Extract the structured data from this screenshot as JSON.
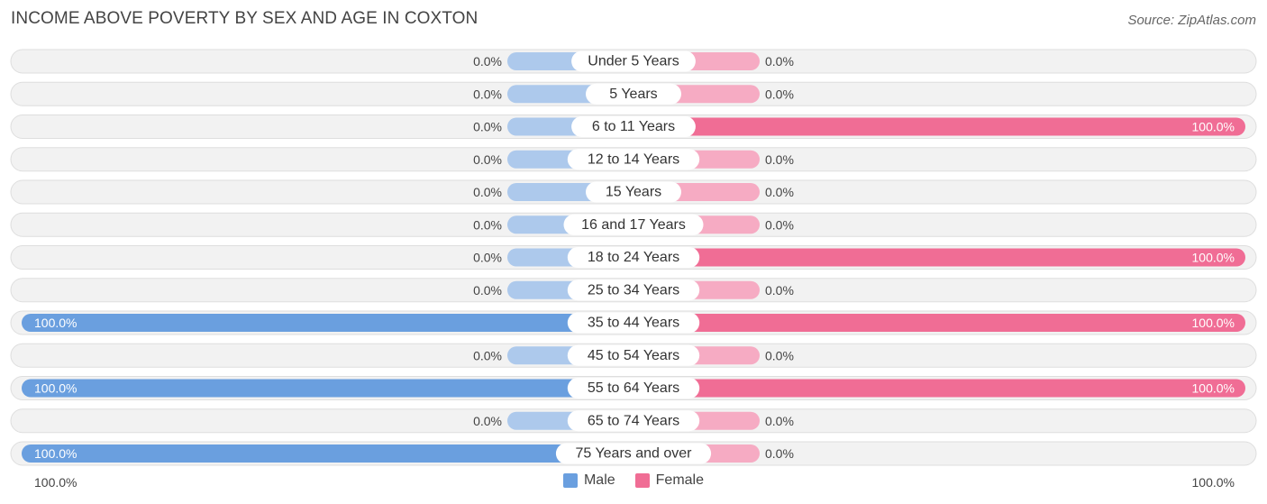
{
  "title": "INCOME ABOVE POVERTY BY SEX AND AGE IN COXTON",
  "source": "Source: ZipAtlas.com",
  "colors": {
    "male_strong": "#6a9fdf",
    "male_light": "#adc9ec",
    "female_strong": "#f06d95",
    "female_light": "#f6abc3",
    "row_bg": "#f2f2f2",
    "row_border": "#dedede"
  },
  "legend": {
    "male": "Male",
    "female": "Female"
  },
  "axis": {
    "left": "100.0%",
    "right": "100.0%"
  },
  "chart_data": {
    "type": "bar",
    "orientation": "horizontal-diverging",
    "title": "INCOME ABOVE POVERTY BY SEX AND AGE IN COXTON",
    "xlim": [
      0,
      100
    ],
    "categories": [
      "Under 5 Years",
      "5 Years",
      "6 to 11 Years",
      "12 to 14 Years",
      "15 Years",
      "16 and 17 Years",
      "18 to 24 Years",
      "25 to 34 Years",
      "35 to 44 Years",
      "45 to 54 Years",
      "55 to 64 Years",
      "65 to 74 Years",
      "75 Years and over"
    ],
    "series": [
      {
        "name": "Male",
        "values": [
          0,
          0,
          0,
          0,
          0,
          0,
          0,
          0,
          100,
          0,
          100,
          0,
          100
        ],
        "labels": [
          "0.0%",
          "0.0%",
          "0.0%",
          "0.0%",
          "0.0%",
          "0.0%",
          "0.0%",
          "0.0%",
          "100.0%",
          "0.0%",
          "100.0%",
          "0.0%",
          "100.0%"
        ]
      },
      {
        "name": "Female",
        "values": [
          0,
          0,
          100,
          0,
          0,
          0,
          100,
          0,
          100,
          0,
          100,
          0,
          0
        ],
        "labels": [
          "0.0%",
          "0.0%",
          "100.0%",
          "0.0%",
          "0.0%",
          "0.0%",
          "100.0%",
          "0.0%",
          "100.0%",
          "0.0%",
          "100.0%",
          "0.0%",
          "0.0%"
        ]
      }
    ]
  }
}
